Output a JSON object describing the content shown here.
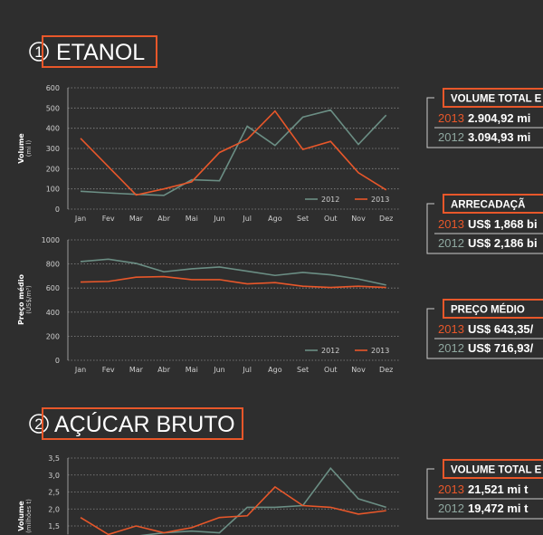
{
  "sections": [
    {
      "number": "1",
      "title": "ETANOL"
    },
    {
      "number": "2",
      "title": "AÇÚCAR BRUTO"
    }
  ],
  "panels": [
    {
      "title": "VOLUME TOTAL E",
      "rows": [
        {
          "year": "2013",
          "value": "2.904,92 mi"
        },
        {
          "year": "2012",
          "value": "3.094,93 mi"
        }
      ]
    },
    {
      "title": "ARRECADAÇÃ",
      "rows": [
        {
          "year": "2013",
          "value": "US$ 1,868 bi"
        },
        {
          "year": "2012",
          "value": "US$ 2,186 bi"
        }
      ]
    },
    {
      "title": "PREÇO MÉDIO",
      "rows": [
        {
          "year": "2013",
          "value": "US$ 643,35/"
        },
        {
          "year": "2012",
          "value": "US$ 716,93/"
        }
      ]
    },
    {
      "title": "VOLUME TOTAL E",
      "rows": [
        {
          "year": "2013",
          "value": "21,521 mi t"
        },
        {
          "year": "2012",
          "value": "19,472 mi t"
        }
      ]
    }
  ],
  "chart_data": [
    {
      "type": "line",
      "ylabel": "Volume",
      "ylabel_sub": "(mi l)",
      "categories": [
        "Jan",
        "Fev",
        "Mar",
        "Abr",
        "Mai",
        "Jun",
        "Jul",
        "Ago",
        "Set",
        "Out",
        "Nov",
        "Dez"
      ],
      "series": [
        {
          "name": "2012",
          "color": "#6b8e84",
          "values": [
            88,
            80,
            73,
            68,
            145,
            140,
            410,
            315,
            455,
            490,
            320,
            465
          ]
        },
        {
          "name": "2013",
          "color": "#e8572a",
          "values": [
            350,
            210,
            70,
            100,
            135,
            280,
            345,
            485,
            295,
            335,
            180,
            95
          ]
        }
      ],
      "ylim": [
        0,
        600
      ],
      "yticks": [
        0,
        100,
        200,
        300,
        400,
        500,
        600
      ],
      "grid": true,
      "legend": "lower right"
    },
    {
      "type": "line",
      "ylabel": "Preço médio",
      "ylabel_sub": "(US$/m³)",
      "categories": [
        "Jan",
        "Fev",
        "Mar",
        "Abr",
        "Mai",
        "Jun",
        "Jul",
        "Ago",
        "Set",
        "Out",
        "Nov",
        "Dez"
      ],
      "series": [
        {
          "name": "2012",
          "color": "#6b8e84",
          "values": [
            820,
            840,
            805,
            735,
            760,
            775,
            740,
            705,
            730,
            710,
            675,
            625
          ]
        },
        {
          "name": "2013",
          "color": "#e8572a",
          "values": [
            650,
            655,
            690,
            695,
            670,
            670,
            635,
            645,
            615,
            605,
            615,
            605
          ]
        }
      ],
      "ylim": [
        0,
        1000
      ],
      "yticks": [
        0,
        200,
        400,
        600,
        800,
        1000
      ],
      "grid": true,
      "legend": "lower right"
    },
    {
      "type": "line",
      "ylabel": "Volume",
      "ylabel_sub": "(milhões t)",
      "series": [
        {
          "name": "2012",
          "color": "#6b8e84",
          "values": [
            1.1,
            1.0,
            1.2,
            1.3,
            1.35,
            1.3,
            2.05,
            2.05,
            2.1,
            3.2,
            2.3,
            2.05
          ]
        },
        {
          "name": "2013",
          "color": "#e8572a",
          "values": [
            1.75,
            1.25,
            1.5,
            1.3,
            1.45,
            1.75,
            1.8,
            2.65,
            2.1,
            2.05,
            1.85,
            1.95
          ]
        }
      ],
      "ylim": [
        1.25,
        3.5
      ],
      "yticks": [
        {
          "value": 1.5,
          "label": "1,5"
        },
        {
          "value": 2,
          "label": "2,0"
        },
        {
          "value": 2.5,
          "label": "2,5"
        },
        {
          "value": 3,
          "label": "3,0"
        },
        {
          "value": 3.5,
          "label": "3,5"
        }
      ],
      "grid": true
    }
  ]
}
